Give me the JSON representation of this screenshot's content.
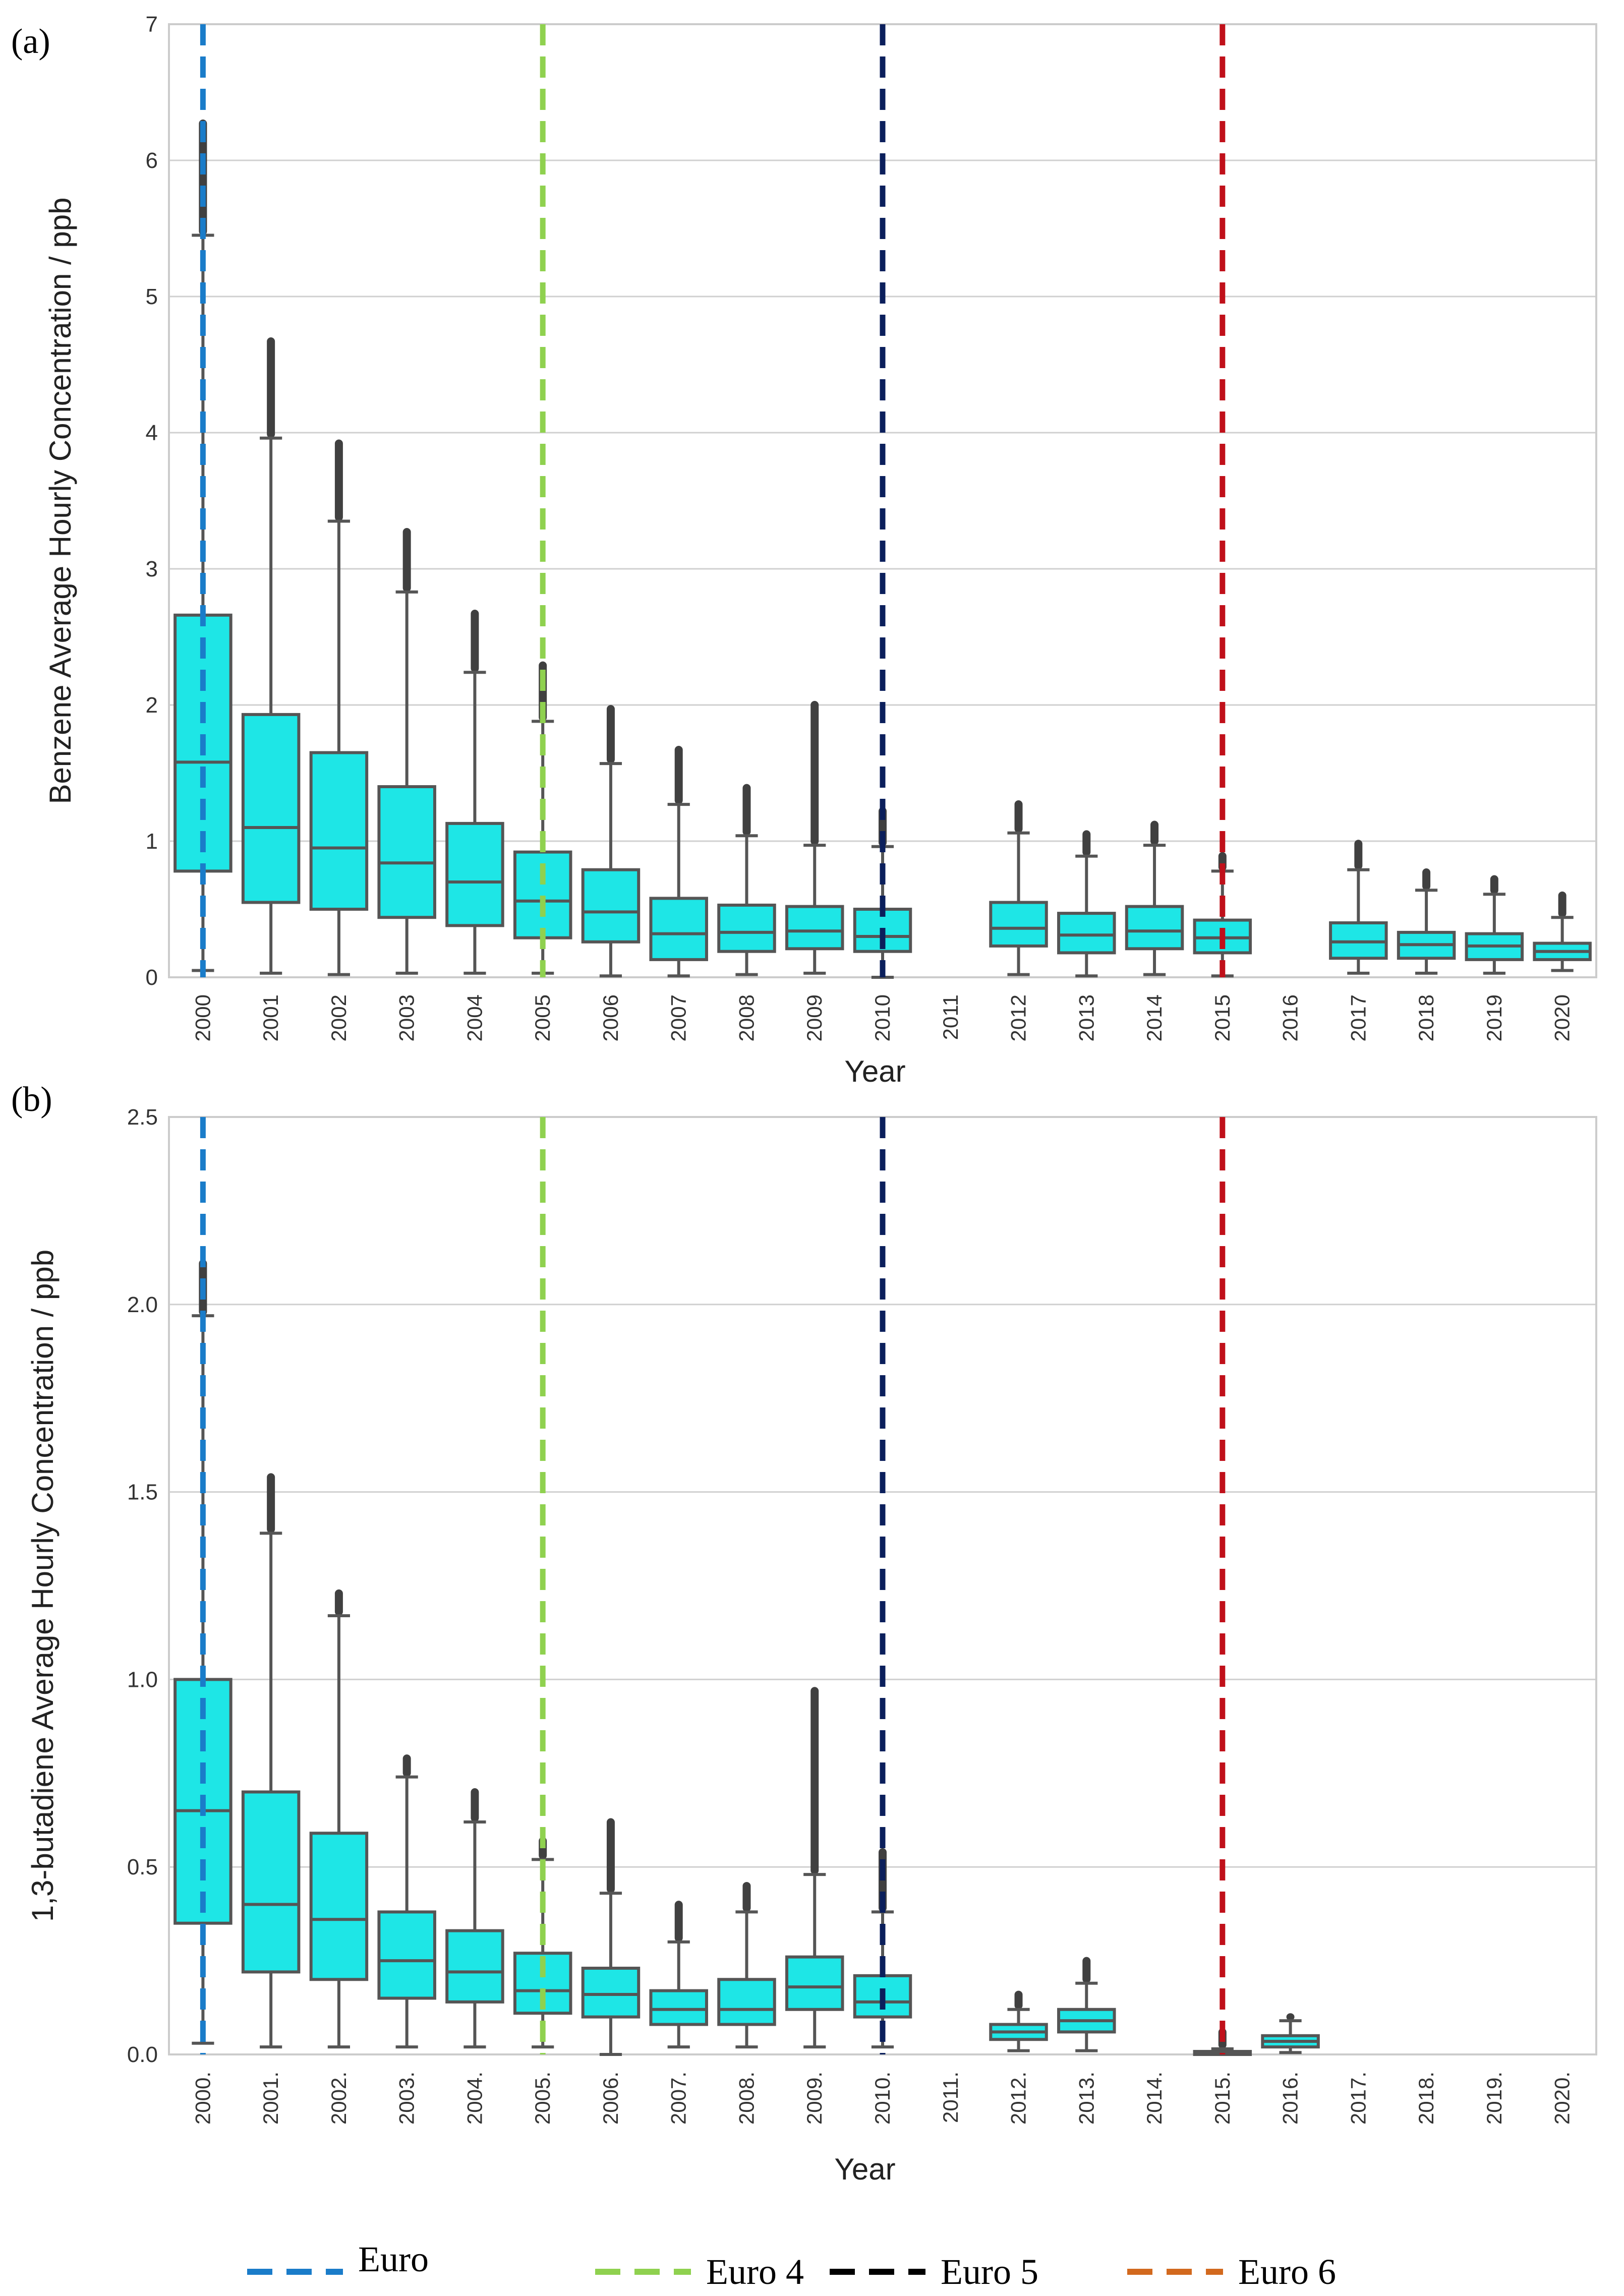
{
  "chart_data": [
    {
      "panel_label": "(a)",
      "type": "box",
      "ylabel": "Benzene Average Hourly Concentration / ppb",
      "xlabel": "Year",
      "ylim": [
        0,
        7
      ],
      "yticks": [
        "0",
        "1",
        "2",
        "3",
        "4",
        "5",
        "6",
        "7"
      ],
      "grid": "horizontal",
      "categories": [
        "2000",
        "2001",
        "2002",
        "2003",
        "2004",
        "2005",
        "2006",
        "2007",
        "2008",
        "2009",
        "2010",
        "2011",
        "2012",
        "2013",
        "2014",
        "2015",
        "2016",
        "2017",
        "2018",
        "2019",
        "2020"
      ],
      "boxes": [
        {
          "q1": 0.78,
          "median": 1.58,
          "q3": 2.66,
          "whisker_low": 0.05,
          "whisker_high": 5.45,
          "outlier_max": 6.3
        },
        {
          "q1": 0.55,
          "median": 1.1,
          "q3": 1.93,
          "whisker_low": 0.03,
          "whisker_high": 3.96,
          "outlier_max": 4.7
        },
        {
          "q1": 0.5,
          "median": 0.95,
          "q3": 1.65,
          "whisker_low": 0.02,
          "whisker_high": 3.35,
          "outlier_max": 3.95
        },
        {
          "q1": 0.44,
          "median": 0.84,
          "q3": 1.4,
          "whisker_low": 0.03,
          "whisker_high": 2.83,
          "outlier_max": 3.3
        },
        {
          "q1": 0.38,
          "median": 0.7,
          "q3": 1.13,
          "whisker_low": 0.03,
          "whisker_high": 2.24,
          "outlier_max": 2.7
        },
        {
          "q1": 0.29,
          "median": 0.56,
          "q3": 0.92,
          "whisker_low": 0.03,
          "whisker_high": 1.88,
          "outlier_max": 2.32
        },
        {
          "q1": 0.26,
          "median": 0.48,
          "q3": 0.79,
          "whisker_low": 0.01,
          "whisker_high": 1.57,
          "outlier_max": 2.0
        },
        {
          "q1": 0.13,
          "median": 0.32,
          "q3": 0.58,
          "whisker_low": 0.01,
          "whisker_high": 1.27,
          "outlier_max": 1.7
        },
        {
          "q1": 0.19,
          "median": 0.33,
          "q3": 0.53,
          "whisker_low": 0.02,
          "whisker_high": 1.04,
          "outlier_max": 1.42
        },
        {
          "q1": 0.21,
          "median": 0.34,
          "q3": 0.52,
          "whisker_low": 0.03,
          "whisker_high": 0.97,
          "outlier_max": 2.03
        },
        {
          "q1": 0.19,
          "median": 0.3,
          "q3": 0.5,
          "whisker_low": 0.0,
          "whisker_high": 0.96,
          "outlier_max": 1.25
        },
        null,
        {
          "q1": 0.23,
          "median": 0.36,
          "q3": 0.55,
          "whisker_low": 0.02,
          "whisker_high": 1.06,
          "outlier_max": 1.3
        },
        {
          "q1": 0.18,
          "median": 0.31,
          "q3": 0.47,
          "whisker_low": 0.01,
          "whisker_high": 0.89,
          "outlier_max": 1.08
        },
        {
          "q1": 0.21,
          "median": 0.34,
          "q3": 0.52,
          "whisker_low": 0.02,
          "whisker_high": 0.97,
          "outlier_max": 1.15
        },
        {
          "q1": 0.18,
          "median": 0.29,
          "q3": 0.42,
          "whisker_low": 0.01,
          "whisker_high": 0.78,
          "outlier_max": 0.92
        },
        null,
        {
          "q1": 0.14,
          "median": 0.26,
          "q3": 0.4,
          "whisker_low": 0.03,
          "whisker_high": 0.79,
          "outlier_max": 1.01
        },
        {
          "q1": 0.14,
          "median": 0.24,
          "q3": 0.33,
          "whisker_low": 0.03,
          "whisker_high": 0.64,
          "outlier_max": 0.8
        },
        {
          "q1": 0.13,
          "median": 0.23,
          "q3": 0.32,
          "whisker_low": 0.03,
          "whisker_high": 0.61,
          "outlier_max": 0.75
        },
        {
          "q1": 0.13,
          "median": 0.19,
          "q3": 0.25,
          "whisker_low": 0.05,
          "whisker_high": 0.44,
          "outlier_max": 0.63
        }
      ],
      "vlines": [
        {
          "label": "Euro",
          "at": "2000",
          "color": "#1a7cc9"
        },
        {
          "label": "Euro 4",
          "at": "2005",
          "color": "#8fd14f"
        },
        {
          "label": "Euro 5",
          "at": "2010",
          "color": "#0b1f5c"
        },
        {
          "label": "Euro 6",
          "at": "2015",
          "color": "#c0101a"
        }
      ]
    },
    {
      "panel_label": "(b)",
      "type": "box",
      "ylabel": "1,3-butadiene Average Hourly Concentration / ppb",
      "xlabel": "Year",
      "ylim": [
        0,
        2.5
      ],
      "yticks": [
        "0.0",
        "0.5",
        "1.0",
        "1.5",
        "2.0",
        "2.5"
      ],
      "grid": "horizontal",
      "categories": [
        "2000.",
        "2001.",
        "2002.",
        "2003.",
        "2004.",
        "2005.",
        "2006.",
        "2007.",
        "2008.",
        "2009.",
        "2010.",
        "2011.",
        "2012.",
        "2013.",
        "2014.",
        "2015.",
        "2016.",
        "2017.",
        "2018.",
        "2019.",
        "2020."
      ],
      "boxes": [
        {
          "q1": 0.35,
          "median": 0.65,
          "q3": 1.0,
          "whisker_low": 0.03,
          "whisker_high": 1.97,
          "outlier_max": 2.12
        },
        {
          "q1": 0.22,
          "median": 0.4,
          "q3": 0.7,
          "whisker_low": 0.02,
          "whisker_high": 1.39,
          "outlier_max": 1.55
        },
        {
          "q1": 0.2,
          "median": 0.36,
          "q3": 0.59,
          "whisker_low": 0.02,
          "whisker_high": 1.17,
          "outlier_max": 1.24
        },
        {
          "q1": 0.15,
          "median": 0.25,
          "q3": 0.38,
          "whisker_low": 0.02,
          "whisker_high": 0.74,
          "outlier_max": 0.8
        },
        {
          "q1": 0.14,
          "median": 0.22,
          "q3": 0.33,
          "whisker_low": 0.02,
          "whisker_high": 0.62,
          "outlier_max": 0.71
        },
        {
          "q1": 0.11,
          "median": 0.17,
          "q3": 0.27,
          "whisker_low": 0.02,
          "whisker_high": 0.52,
          "outlier_max": 0.58
        },
        {
          "q1": 0.1,
          "median": 0.16,
          "q3": 0.23,
          "whisker_low": 0.0,
          "whisker_high": 0.43,
          "outlier_max": 0.63
        },
        {
          "q1": 0.08,
          "median": 0.12,
          "q3": 0.17,
          "whisker_low": 0.02,
          "whisker_high": 0.3,
          "outlier_max": 0.41
        },
        {
          "q1": 0.08,
          "median": 0.12,
          "q3": 0.2,
          "whisker_low": 0.02,
          "whisker_high": 0.38,
          "outlier_max": 0.46
        },
        {
          "q1": 0.12,
          "median": 0.18,
          "q3": 0.26,
          "whisker_low": 0.02,
          "whisker_high": 0.48,
          "outlier_max": 0.98
        },
        {
          "q1": 0.1,
          "median": 0.14,
          "q3": 0.21,
          "whisker_low": 0.02,
          "whisker_high": 0.38,
          "outlier_max": 0.55
        },
        null,
        {
          "q1": 0.04,
          "median": 0.06,
          "q3": 0.08,
          "whisker_low": 0.01,
          "whisker_high": 0.12,
          "outlier_max": 0.17
        },
        {
          "q1": 0.06,
          "median": 0.09,
          "q3": 0.12,
          "whisker_low": 0.01,
          "whisker_high": 0.19,
          "outlier_max": 0.26
        },
        null,
        {
          "q1": 0.003,
          "median": 0.005,
          "q3": 0.008,
          "whisker_low": 0.0,
          "whisker_high": 0.015,
          "outlier_max": 0.07
        },
        {
          "q1": 0.02,
          "median": 0.035,
          "q3": 0.05,
          "whisker_low": 0.005,
          "whisker_high": 0.09,
          "outlier_max": 0.11
        },
        null,
        null,
        null,
        null
      ],
      "vlines": [
        {
          "label": "Euro",
          "at": "2000.",
          "color": "#1a7cc9"
        },
        {
          "label": "Euro 4",
          "at": "2005.",
          "color": "#8fd14f"
        },
        {
          "label": "Euro 5",
          "at": "2010.",
          "color": "#0b1f5c"
        },
        {
          "label": "Euro 6",
          "at": "2015.",
          "color": "#c0101a"
        }
      ]
    }
  ],
  "legend": [
    {
      "label": "Euro",
      "color": "#1a7cc9"
    },
    {
      "label": "Euro 4",
      "color": "#8fd14f"
    },
    {
      "label": "Euro 5",
      "color": "#000000"
    },
    {
      "label": "Euro 6",
      "color": "#d2691e"
    }
  ],
  "colors": {
    "box_fill": "#1ee6e6",
    "box_edge": "#555555",
    "outlier": "#404040",
    "grid": "#d0d0d0",
    "frame": "#cccccc"
  }
}
